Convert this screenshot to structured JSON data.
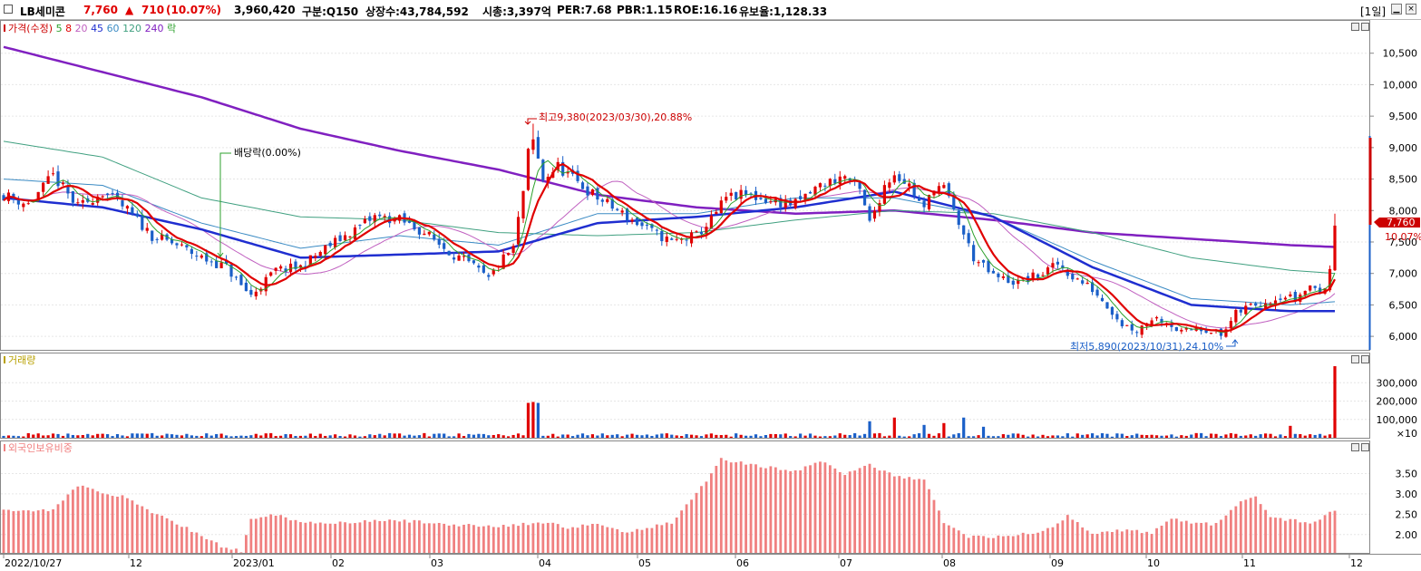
{
  "header": {
    "name": "LB세미콘",
    "price": "7,760",
    "change_arrow": "▲",
    "change": "710",
    "change_pct": "(10.07%)",
    "volume": "3,960,420",
    "market": "구분:Q150",
    "shares": "상장수:43,784,592",
    "mcap": "시총:3,397억",
    "per": "PER:7.68",
    "pbr": "PBR:1.15",
    "roe": "ROE:16.16",
    "reserve": "유보율:1,128.33",
    "period": "[1일]"
  },
  "colors": {
    "up": "#e00000",
    "down": "#1a5fc8",
    "ma5": "#2ca02c",
    "ma8": "#e00000",
    "ma20": "#c060c0",
    "ma45": "#1f2ed0",
    "ma60": "#3b8bc4",
    "ma120": "#40a080",
    "ma240": "#8020c0",
    "foreign": "#f08080"
  },
  "legend": {
    "price": [
      {
        "text": "가격(수정)",
        "color": "#cc0000"
      },
      {
        "text": "5",
        "color": "#2ca02c"
      },
      {
        "text": "8",
        "color": "#e00000"
      },
      {
        "text": "20",
        "color": "#c060c0"
      },
      {
        "text": "45",
        "color": "#1f2ed0"
      },
      {
        "text": "60",
        "color": "#3b8bc4"
      },
      {
        "text": "120",
        "color": "#40a080"
      },
      {
        "text": "240",
        "color": "#8020c0"
      },
      {
        "text": "락",
        "color": "#2ca02c"
      }
    ],
    "volume": "거래량",
    "foreign": "외국인보유비중"
  },
  "annotations": {
    "high": "최고9,380(2023/03/30),20.88%",
    "low": "최저5,890(2023/10/31),24.10%",
    "dividend": "배당락(0.00%)",
    "last_price": "7,760",
    "last_pct": "10.07%"
  },
  "chart_data": [
    {
      "type": "candlestick",
      "title": "",
      "ylim": [
        5800,
        11000
      ],
      "yticks": [
        6000,
        6500,
        7000,
        7500,
        8000,
        8500,
        9000,
        9500,
        10000,
        10500
      ],
      "ytick_labels": [
        "6,000",
        "6,500",
        "7,000",
        "7,500",
        "8,000",
        "8,500",
        "9,000",
        "9,500",
        "10,000",
        "10,500"
      ],
      "x_labels": [
        "2022/10/27",
        "12",
        "2023/01",
        "02",
        "03",
        "04",
        "05",
        "06",
        "07",
        "08",
        "09",
        "10",
        "11",
        "12"
      ],
      "anchors": [
        [
          0,
          8250
        ],
        [
          5,
          8100
        ],
        [
          10,
          8550
        ],
        [
          15,
          8050
        ],
        [
          20,
          8300
        ],
        [
          25,
          8000
        ],
        [
          30,
          7600
        ],
        [
          35,
          7450
        ],
        [
          40,
          7250
        ],
        [
          45,
          7100
        ],
        [
          48,
          6800
        ],
        [
          50,
          6650
        ],
        [
          55,
          7050
        ],
        [
          60,
          7100
        ],
        [
          65,
          7400
        ],
        [
          70,
          7650
        ],
        [
          75,
          7900
        ],
        [
          80,
          7850
        ],
        [
          85,
          7650
        ],
        [
          90,
          7350
        ],
        [
          95,
          7100
        ],
        [
          98,
          6900
        ],
        [
          100,
          7150
        ],
        [
          103,
          7400
        ],
        [
          105,
          8300
        ],
        [
          106,
          8900
        ],
        [
          107,
          9100
        ],
        [
          109,
          8500
        ],
        [
          112,
          8700
        ],
        [
          115,
          8500
        ],
        [
          120,
          8200
        ],
        [
          125,
          7950
        ],
        [
          130,
          7700
        ],
        [
          135,
          7500
        ],
        [
          140,
          7600
        ],
        [
          143,
          7850
        ],
        [
          146,
          8200
        ],
        [
          150,
          8250
        ],
        [
          155,
          8150
        ],
        [
          160,
          8100
        ],
        [
          165,
          8400
        ],
        [
          170,
          8550
        ],
        [
          173,
          8300
        ],
        [
          175,
          7800
        ],
        [
          178,
          8400
        ],
        [
          180,
          8600
        ],
        [
          183,
          8400
        ],
        [
          186,
          8000
        ],
        [
          188,
          8400
        ],
        [
          190,
          8350
        ],
        [
          193,
          7800
        ],
        [
          196,
          7250
        ],
        [
          200,
          6950
        ],
        [
          205,
          6850
        ],
        [
          210,
          7000
        ],
        [
          213,
          7150
        ],
        [
          216,
          6950
        ],
        [
          220,
          6750
        ],
        [
          223,
          6500
        ],
        [
          226,
          6200
        ],
        [
          229,
          6100
        ],
        [
          232,
          6300
        ],
        [
          235,
          6250
        ],
        [
          238,
          6050
        ],
        [
          241,
          6150
        ],
        [
          244,
          6100
        ],
        [
          246,
          6000
        ],
        [
          249,
          6350
        ],
        [
          252,
          6500
        ],
        [
          255,
          6550
        ],
        [
          258,
          6650
        ],
        [
          261,
          6600
        ],
        [
          264,
          6800
        ],
        [
          267,
          6700
        ],
        [
          268,
          7100
        ],
        [
          269,
          7760
        ]
      ],
      "ma_summary": {
        "ma240": [
          [
            0,
            10600
          ],
          [
            20,
            10200
          ],
          [
            40,
            9800
          ],
          [
            60,
            9300
          ],
          [
            80,
            8950
          ],
          [
            100,
            8650
          ],
          [
            120,
            8250
          ],
          [
            140,
            8050
          ],
          [
            160,
            7950
          ],
          [
            180,
            8000
          ],
          [
            200,
            7850
          ],
          [
            220,
            7650
          ],
          [
            240,
            7550
          ],
          [
            260,
            7450
          ],
          [
            269,
            7420
          ]
        ],
        "ma120": [
          [
            0,
            9100
          ],
          [
            20,
            8850
          ],
          [
            40,
            8200
          ],
          [
            60,
            7900
          ],
          [
            80,
            7850
          ],
          [
            100,
            7650
          ],
          [
            120,
            7600
          ],
          [
            140,
            7650
          ],
          [
            160,
            7850
          ],
          [
            180,
            8000
          ],
          [
            200,
            7950
          ],
          [
            220,
            7650
          ],
          [
            240,
            7250
          ],
          [
            260,
            7050
          ],
          [
            269,
            7000
          ]
        ],
        "ma60": [
          [
            0,
            8500
          ],
          [
            20,
            8400
          ],
          [
            40,
            7800
          ],
          [
            60,
            7400
          ],
          [
            80,
            7600
          ],
          [
            100,
            7450
          ],
          [
            120,
            7950
          ],
          [
            140,
            7950
          ],
          [
            160,
            8200
          ],
          [
            180,
            8200
          ],
          [
            200,
            7900
          ],
          [
            220,
            7200
          ],
          [
            240,
            6600
          ],
          [
            260,
            6500
          ],
          [
            269,
            6550
          ]
        ],
        "ma45": [
          [
            0,
            8200
          ],
          [
            20,
            8050
          ],
          [
            40,
            7700
          ],
          [
            60,
            7250
          ],
          [
            80,
            7300
          ],
          [
            100,
            7350
          ],
          [
            120,
            7800
          ],
          [
            140,
            7900
          ],
          [
            160,
            8050
          ],
          [
            180,
            8300
          ],
          [
            200,
            7900
          ],
          [
            220,
            7100
          ],
          [
            240,
            6500
          ],
          [
            260,
            6400
          ],
          [
            269,
            6400
          ]
        ]
      },
      "high": 9380,
      "low": 5890,
      "last": 7760
    },
    {
      "type": "bar",
      "title": "",
      "ylabel": "",
      "yticks": [
        100000,
        200000,
        300000
      ],
      "ytick_labels": [
        "100,000",
        "200,000",
        "300,000"
      ],
      "unit": "×10",
      "ylim": [
        0,
        400000
      ],
      "spikes": [
        [
          106,
          190000
        ],
        [
          107,
          195000
        ],
        [
          108,
          190000
        ],
        [
          175,
          90000
        ],
        [
          180,
          110000
        ],
        [
          186,
          70000
        ],
        [
          190,
          80000
        ],
        [
          194,
          110000
        ],
        [
          198,
          60000
        ],
        [
          260,
          65000
        ],
        [
          269,
          390000
        ]
      ],
      "baseline": 15000
    },
    {
      "type": "bar",
      "title": "",
      "ylim": [
        1.55,
        4.0
      ],
      "yticks": [
        2.0,
        2.5,
        3.0,
        3.5
      ],
      "ytick_labels": [
        "2.00",
        "2.50",
        "3.00",
        "3.50"
      ],
      "anchors": [
        [
          0,
          2.6
        ],
        [
          10,
          2.6
        ],
        [
          15,
          3.2
        ],
        [
          20,
          3.05
        ],
        [
          25,
          2.9
        ],
        [
          30,
          2.55
        ],
        [
          38,
          2.1
        ],
        [
          45,
          1.65
        ],
        [
          48,
          1.6
        ],
        [
          50,
          2.4
        ],
        [
          55,
          2.5
        ],
        [
          60,
          2.3
        ],
        [
          70,
          2.3
        ],
        [
          80,
          2.35
        ],
        [
          90,
          2.25
        ],
        [
          100,
          2.2
        ],
        [
          105,
          2.25
        ],
        [
          110,
          2.3
        ],
        [
          115,
          2.15
        ],
        [
          120,
          2.3
        ],
        [
          125,
          2.05
        ],
        [
          135,
          2.3
        ],
        [
          140,
          3.0
        ],
        [
          145,
          3.85
        ],
        [
          150,
          3.75
        ],
        [
          155,
          3.65
        ],
        [
          160,
          3.55
        ],
        [
          165,
          3.8
        ],
        [
          170,
          3.5
        ],
        [
          175,
          3.7
        ],
        [
          180,
          3.45
        ],
        [
          186,
          3.35
        ],
        [
          190,
          2.3
        ],
        [
          195,
          1.95
        ],
        [
          200,
          1.95
        ],
        [
          205,
          2.0
        ],
        [
          210,
          2.05
        ],
        [
          215,
          2.45
        ],
        [
          220,
          2.05
        ],
        [
          226,
          2.1
        ],
        [
          232,
          2.05
        ],
        [
          236,
          2.4
        ],
        [
          240,
          2.3
        ],
        [
          245,
          2.25
        ],
        [
          250,
          2.8
        ],
        [
          253,
          2.9
        ],
        [
          256,
          2.45
        ],
        [
          260,
          2.35
        ],
        [
          265,
          2.3
        ],
        [
          269,
          2.6
        ]
      ]
    }
  ]
}
